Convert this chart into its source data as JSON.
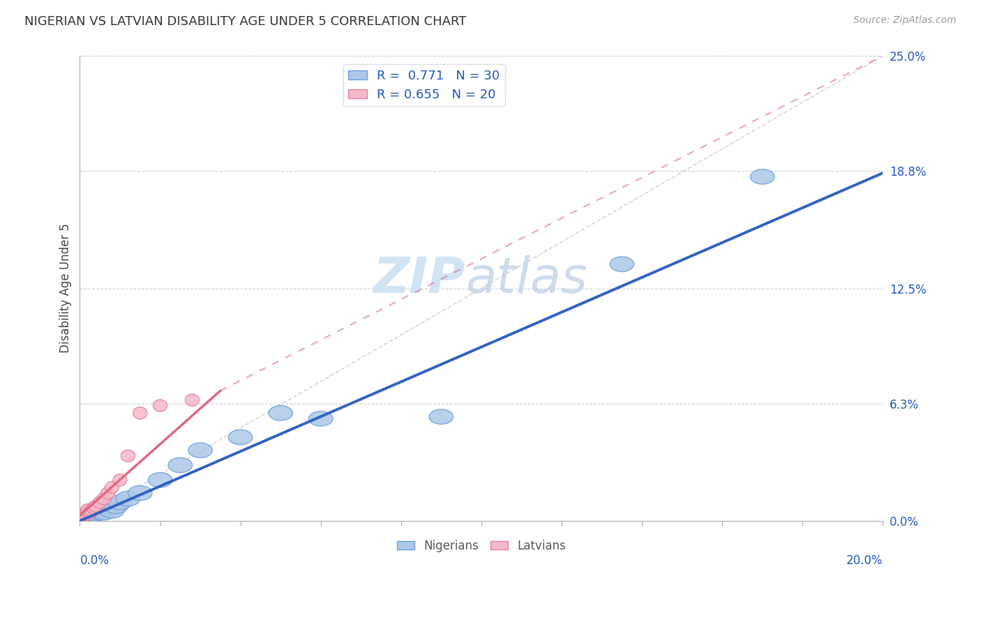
{
  "title": "NIGERIAN VS LATVIAN DISABILITY AGE UNDER 5 CORRELATION CHART",
  "source_text": "Source: ZipAtlas.com",
  "ylabel": "Disability Age Under 5",
  "ytick_values": [
    0.0,
    6.3,
    12.5,
    18.8,
    25.0
  ],
  "xmin": 0.0,
  "xmax": 20.0,
  "ymin": 0.0,
  "ymax": 25.0,
  "nigerian_R": 0.771,
  "nigerian_N": 30,
  "latvian_R": 0.655,
  "latvian_N": 20,
  "nigerian_color": "#adc8e8",
  "latvian_color": "#f5b8c8",
  "nigerian_edge_color": "#6a9fd8",
  "latvian_edge_color": "#e080a0",
  "blue_line_color": "#3060c0",
  "pink_line_color": "#e06880",
  "ref_line_color": "#cccccc",
  "watermark_color": "#d0e4f4",
  "nigerian_x": [
    0.05,
    0.08,
    0.1,
    0.12,
    0.15,
    0.18,
    0.2,
    0.22,
    0.25,
    0.28,
    0.3,
    0.35,
    0.4,
    0.5,
    0.6,
    0.7,
    0.8,
    0.9,
    1.0,
    1.2,
    1.5,
    2.0,
    2.5,
    3.0,
    4.0,
    5.0,
    6.0,
    9.0,
    13.5,
    17.0
  ],
  "nigerian_y": [
    0.15,
    0.2,
    0.1,
    0.25,
    0.12,
    0.3,
    0.18,
    0.22,
    0.15,
    0.28,
    0.35,
    0.4,
    0.5,
    0.6,
    0.45,
    0.7,
    0.55,
    0.8,
    1.0,
    1.2,
    1.5,
    2.2,
    3.0,
    3.8,
    4.5,
    5.8,
    5.5,
    5.6,
    13.8,
    18.5
  ],
  "latvian_x": [
    0.05,
    0.08,
    0.1,
    0.12,
    0.15,
    0.18,
    0.2,
    0.25,
    0.3,
    0.35,
    0.4,
    0.5,
    0.6,
    0.7,
    0.8,
    1.0,
    1.2,
    1.5,
    2.0,
    2.8
  ],
  "latvian_y": [
    0.2,
    0.3,
    0.25,
    0.4,
    0.35,
    0.5,
    0.6,
    0.45,
    0.55,
    0.7,
    0.8,
    1.0,
    1.2,
    1.5,
    1.8,
    2.2,
    3.5,
    5.8,
    6.2,
    6.5
  ],
  "blue_line_x0": 0.0,
  "blue_line_y0": 0.0,
  "blue_line_x1": 20.0,
  "blue_line_y1": 18.7,
  "pink_solid_x0": 0.0,
  "pink_solid_y0": 0.3,
  "pink_solid_x1": 3.5,
  "pink_solid_y1": 7.0,
  "pink_dash_x0": 3.5,
  "pink_dash_y0": 7.0,
  "pink_dash_x1": 20.0,
  "pink_dash_y1": 25.0,
  "ref_x0": 0.0,
  "ref_y0": 0.0,
  "ref_x1": 20.0,
  "ref_y1": 25.0
}
